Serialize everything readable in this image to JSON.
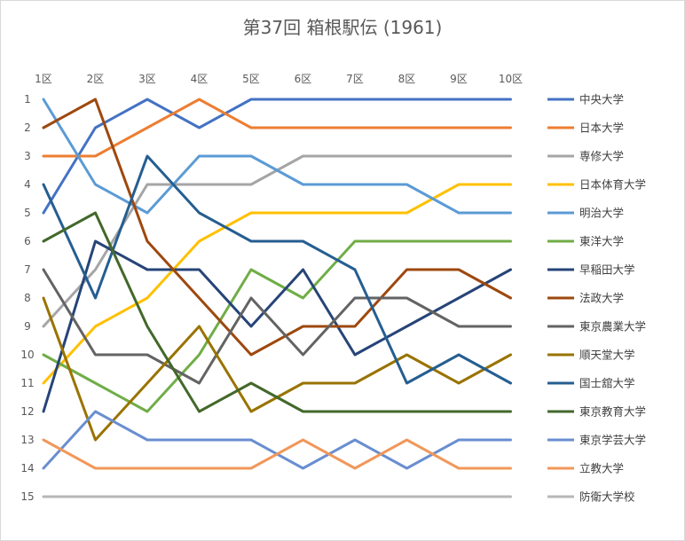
{
  "chart_data": {
    "type": "line",
    "title": "第37回 箱根駅伝 (1961)",
    "x": [
      "1区",
      "2区",
      "3区",
      "4区",
      "5区",
      "6区",
      "7区",
      "8区",
      "9区",
      "10区"
    ],
    "y_ticks": [
      "1",
      "2",
      "3",
      "4",
      "5",
      "6",
      "7",
      "8",
      "9",
      "10",
      "11",
      "12",
      "13",
      "14",
      "15"
    ],
    "ylim": [
      15,
      1
    ],
    "y_inverted": true,
    "grid": "none",
    "legend_position": "right",
    "series": [
      {
        "name": "中央大学",
        "color": "#4472c4",
        "values": [
          5,
          2,
          1,
          2,
          1,
          1,
          1,
          1,
          1,
          1
        ]
      },
      {
        "name": "日本大学",
        "color": "#ed7d31",
        "values": [
          3,
          3,
          2,
          1,
          2,
          2,
          2,
          2,
          2,
          2
        ]
      },
      {
        "name": "専修大学",
        "color": "#a5a5a5",
        "values": [
          9,
          7,
          4,
          4,
          4,
          3,
          3,
          3,
          3,
          3
        ]
      },
      {
        "name": "日本体育大学",
        "color": "#ffc000",
        "values": [
          11,
          9,
          8,
          6,
          5,
          5,
          5,
          5,
          4,
          4
        ]
      },
      {
        "name": "明治大学",
        "color": "#5b9bd5",
        "values": [
          1,
          4,
          5,
          3,
          3,
          4,
          4,
          4,
          5,
          5
        ]
      },
      {
        "name": "東洋大学",
        "color": "#70ad47",
        "values": [
          10,
          11,
          12,
          10,
          7,
          8,
          6,
          6,
          6,
          6
        ]
      },
      {
        "name": "早稲田大学",
        "color": "#264478",
        "values": [
          12,
          6,
          7,
          7,
          9,
          7,
          10,
          9,
          8,
          7
        ]
      },
      {
        "name": "法政大学",
        "color": "#9e480e",
        "values": [
          2,
          1,
          6,
          8,
          10,
          9,
          9,
          7,
          7,
          8
        ]
      },
      {
        "name": "東京農業大学",
        "color": "#636363",
        "values": [
          7,
          10,
          10,
          11,
          8,
          10,
          8,
          8,
          9,
          9
        ]
      },
      {
        "name": "順天堂大学",
        "color": "#997300",
        "values": [
          8,
          13,
          11,
          9,
          12,
          11,
          11,
          10,
          11,
          10
        ]
      },
      {
        "name": "国士舘大学",
        "color": "#255e91",
        "values": [
          4,
          8,
          3,
          5,
          6,
          6,
          7,
          11,
          10,
          11
        ]
      },
      {
        "name": "東京教育大学",
        "color": "#43682b",
        "values": [
          6,
          5,
          9,
          12,
          11,
          12,
          12,
          12,
          12,
          12
        ]
      },
      {
        "name": "東京学芸大学",
        "color": "#698ed0",
        "values": [
          14,
          12,
          13,
          13,
          13,
          14,
          13,
          14,
          13,
          13
        ]
      },
      {
        "name": "立教大学",
        "color": "#f1975a",
        "values": [
          13,
          14,
          14,
          14,
          14,
          13,
          14,
          13,
          14,
          14
        ]
      },
      {
        "name": "防衛大学校",
        "color": "#b7b7b7",
        "values": [
          15,
          15,
          15,
          15,
          15,
          15,
          15,
          15,
          15,
          15
        ]
      }
    ]
  }
}
